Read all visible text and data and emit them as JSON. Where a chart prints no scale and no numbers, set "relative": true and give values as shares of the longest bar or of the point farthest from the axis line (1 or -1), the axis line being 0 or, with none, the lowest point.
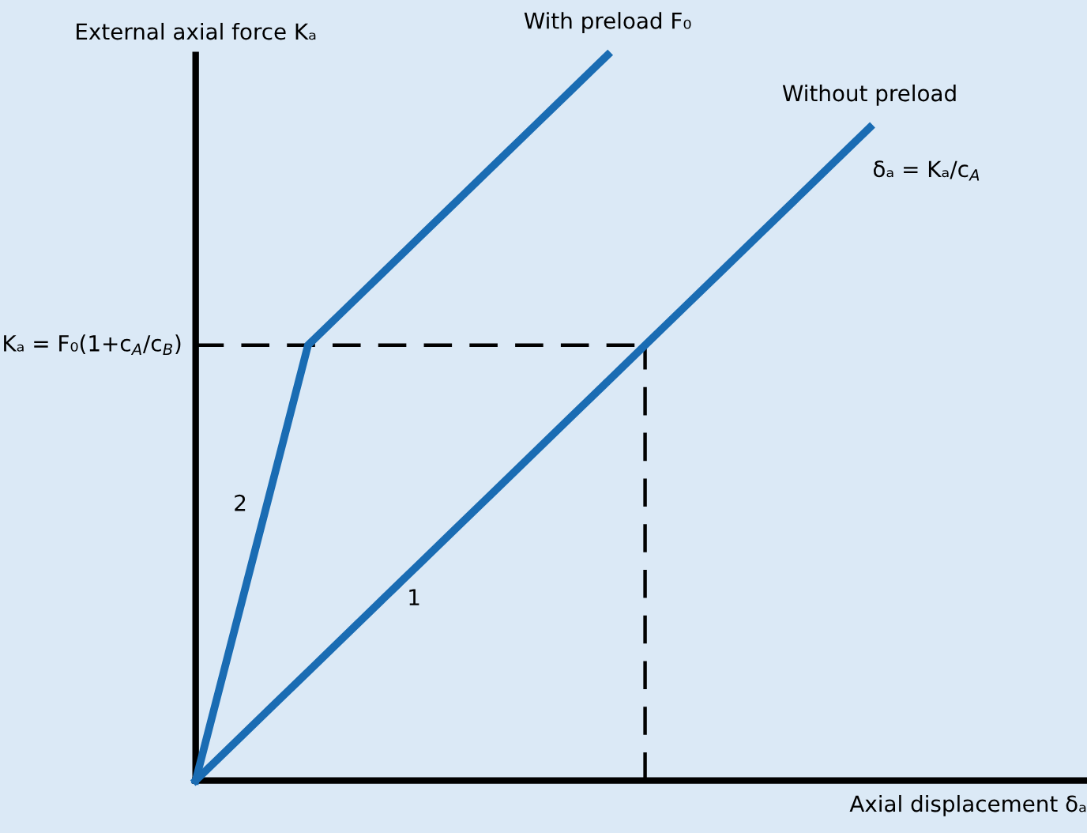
{
  "chart_data": {
    "type": "line",
    "relative": true,
    "tick_labels": false,
    "xlabel": "Axial displacement δₐ",
    "ylabel": "External axial force Kₐ",
    "categories": [
      null,
      null,
      null,
      null,
      null,
      null,
      null,
      null,
      null,
      null,
      null,
      null,
      null,
      null,
      null,
      null,
      null,
      null,
      null,
      null,
      null,
      null,
      null,
      null
    ],
    "series": [
      {
        "name": "With preload F₀",
        "color": "#1a6cb3",
        "values": [
          0,
          0.2,
          0.4,
          0.6,
          0.65,
          0.7,
          0.75,
          0.8,
          0.85,
          0.9,
          0.95,
          1.0,
          null,
          null,
          null,
          null,
          null,
          null,
          null,
          null,
          null,
          null,
          null,
          null
        ]
      },
      {
        "name": "Without preload",
        "color": "#1a6cb3",
        "values": [
          0,
          0.05,
          0.1,
          0.15,
          0.2,
          0.25,
          0.3,
          0.35,
          0.4,
          0.45,
          0.5,
          0.55,
          0.6,
          0.65,
          0.7,
          0.75,
          0.8,
          0.85,
          0.9,
          null,
          null,
          null,
          null,
          null
        ]
      }
    ],
    "ref_lines": [
      {
        "axis": "y",
        "value": 0.6,
        "label": "Kₐ = F₀(1+c$_{A}$/c$_{B}$)",
        "color": "#000000",
        "line_style": "dashed"
      }
    ],
    "annotations": [
      "δₐ = Kₐ/c$_{A}$",
      "2",
      "1"
    ],
    "legend": false
  }
}
